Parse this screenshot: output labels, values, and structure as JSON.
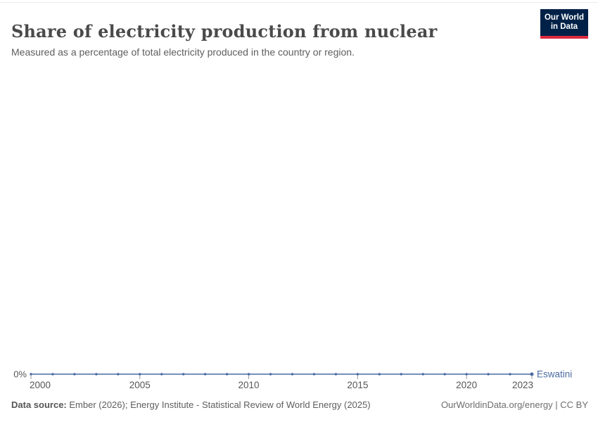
{
  "header": {
    "title": "Share of electricity production from nuclear",
    "subtitle": "Measured as a percentage of total electricity produced in the country or region.",
    "logo": {
      "line1": "Our World",
      "line2": "in Data",
      "bg_color": "#002147",
      "bar_color": "#dc2a3f"
    }
  },
  "chart_data": {
    "type": "line",
    "title": "Share of electricity production from nuclear",
    "xlabel": "",
    "ylabel": "",
    "grid": false,
    "x": [
      2000,
      2001,
      2002,
      2003,
      2004,
      2005,
      2006,
      2007,
      2008,
      2009,
      2010,
      2011,
      2012,
      2013,
      2014,
      2015,
      2016,
      2017,
      2018,
      2019,
      2020,
      2021,
      2022,
      2023
    ],
    "series": [
      {
        "name": "Eswatini",
        "color": "#4c6ba3",
        "values": [
          0,
          0,
          0,
          0,
          0,
          0,
          0,
          0,
          0,
          0,
          0,
          0,
          0,
          0,
          0,
          0,
          0,
          0,
          0,
          0,
          0,
          0,
          0,
          0
        ],
        "unit": "%"
      }
    ],
    "x_ticks": [
      2000,
      2005,
      2010,
      2015,
      2020,
      2023
    ],
    "y_axis": {
      "tick_label": "0%",
      "min": 0,
      "max": 0
    },
    "entity_label": "Eswatini",
    "axis_text_color": "#565656",
    "tick_mark_color": "#999999"
  },
  "footer": {
    "data_source_label": "Data source:",
    "data_source_text": " Ember (2026); Energy Institute - Statistical Review of World Energy (2025)",
    "attribution": "OurWorldinData.org/energy | CC BY"
  }
}
